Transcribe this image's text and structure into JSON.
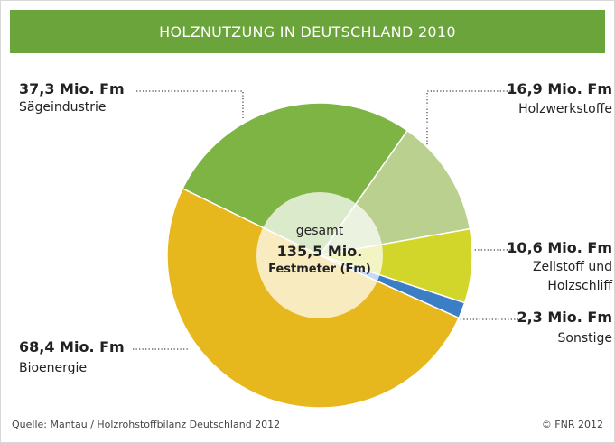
{
  "chart_data": {
    "type": "pie",
    "title": "HOLZNUTZUNG IN DEUTSCHLAND 2010",
    "categories": [
      "Sägeindustrie",
      "Holzwerkstoffe",
      "Zellstoff und\nHolzschliff",
      "Sonstige",
      "Bioenergie"
    ],
    "values": [
      37.3,
      16.9,
      10.6,
      2.3,
      68.4
    ],
    "value_labels": [
      "37,3 Mio. Fm",
      "16,9 Mio. Fm",
      "10,6 Mio. Fm",
      "2,3 Mio. Fm",
      "68,4 Mio. Fm"
    ],
    "colors": [
      "#7db443",
      "#b9d08f",
      "#d3d62a",
      "#3b7ec6",
      "#e7b71e"
    ],
    "center_label": [
      "gesamt",
      "135,5 Mio.",
      "Festmeter (Fm)"
    ],
    "source": "Quelle: Mantau / Holzrohstoffbilanz Deutschland 2012",
    "credit": "© FNR 2012"
  }
}
